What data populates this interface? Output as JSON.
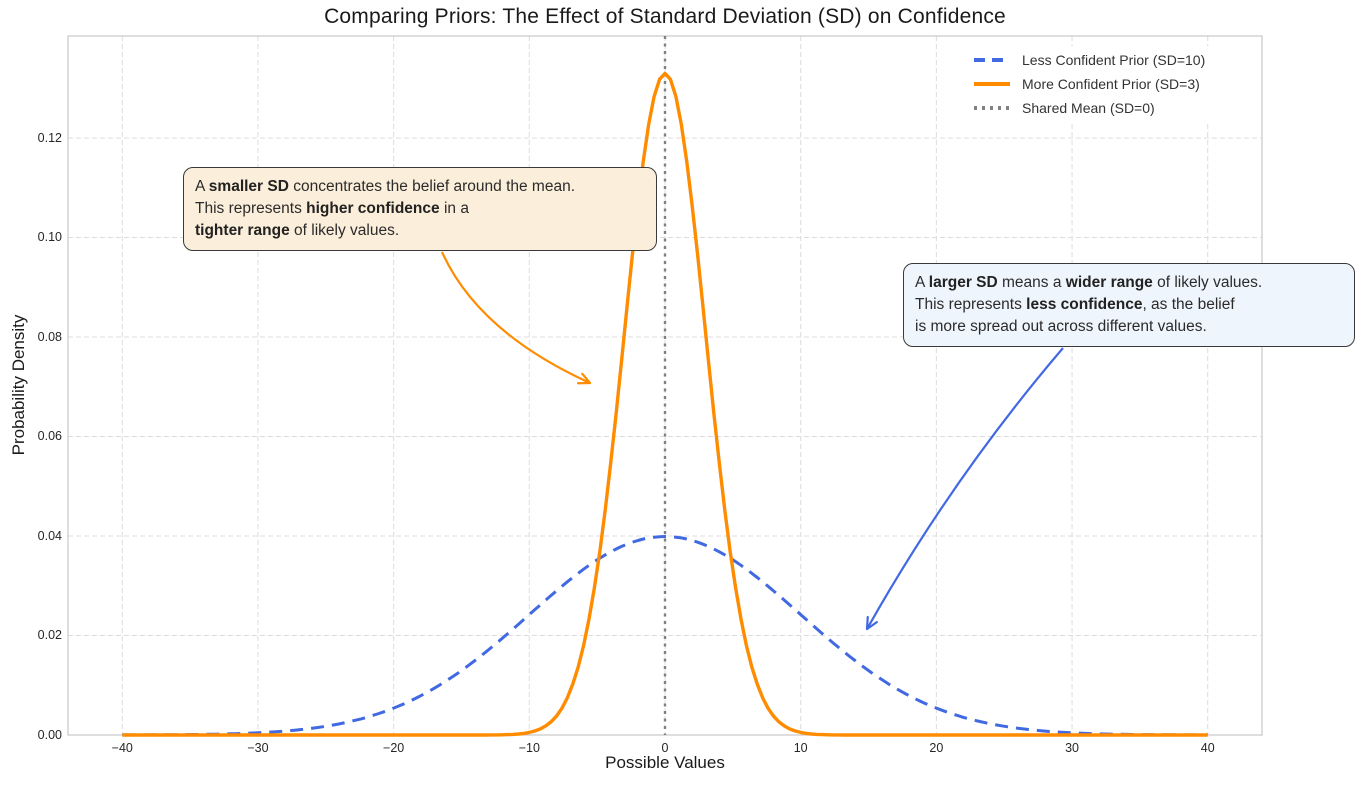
{
  "chart_data": {
    "type": "line",
    "title": "Comparing Priors: The Effect of Standard Deviation (SD) on Confidence",
    "xlabel": "Possible Values",
    "ylabel": "Probability Density",
    "xlim": [
      -44,
      44
    ],
    "ylim": [
      0,
      0.1405
    ],
    "grid": true,
    "xticks": {
      "values": [
        -40,
        -30,
        -20,
        -10,
        0,
        10,
        20,
        30,
        40
      ],
      "labels": [
        "−40",
        "−30",
        "−20",
        "−10",
        "0",
        "10",
        "20",
        "30",
        "40"
      ]
    },
    "yticks": {
      "values": [
        0.0,
        0.02,
        0.04,
        0.06,
        0.08,
        0.1,
        0.12
      ],
      "labels": [
        "0.00",
        "0.02",
        "0.04",
        "0.06",
        "0.08",
        "0.10",
        "0.12"
      ]
    },
    "series": [
      {
        "name": "Less Confident Prior (SD=10)",
        "distribution": "normal_pdf",
        "mean": 0,
        "sd": 10,
        "x_range": [
          -40,
          40
        ],
        "peak_density": 0.0399,
        "color": "#4169E1",
        "line_style": "dashed",
        "line_width": 3
      },
      {
        "name": "More Confident Prior (SD=3)",
        "distribution": "normal_pdf",
        "mean": 0,
        "sd": 3,
        "x_range": [
          -40,
          40
        ],
        "peak_density": 0.133,
        "color": "#FF8C00",
        "line_style": "solid",
        "line_width": 3.4
      }
    ],
    "vline": {
      "label": "Shared Mean (SD=0)",
      "x": 0,
      "color": "#808080",
      "line_style": "dotted"
    },
    "legend": {
      "position": "upper right",
      "items": [
        {
          "label": "Less Confident Prior (SD=10)",
          "color": "#4169E1",
          "style": "dashed"
        },
        {
          "label": "More Confident Prior (SD=3)",
          "color": "#FF8C00",
          "style": "solid"
        },
        {
          "label": "Shared Mean (SD=0)",
          "color": "#808080",
          "style": "dotted"
        }
      ]
    },
    "annotations": [
      {
        "id": "smaller-sd-note",
        "box_color": "#FBEEDA",
        "border_color": "#3a3a3a",
        "arrow_color": "#FF8C00",
        "lines": [
          [
            {
              "t": "A ",
              "b": false
            },
            {
              "t": "smaller SD",
              "b": true
            },
            {
              "t": " concentrates the belief around the mean.",
              "b": false
            }
          ],
          [
            {
              "t": "This represents ",
              "b": false
            },
            {
              "t": "higher confidence",
              "b": true
            },
            {
              "t": " in a",
              "b": false
            }
          ],
          [
            {
              "t": "tighter range",
              "b": true
            },
            {
              "t": " of likely values.",
              "b": false
            }
          ]
        ]
      },
      {
        "id": "larger-sd-note",
        "box_color": "#EFF5FC",
        "border_color": "#3a3a3a",
        "arrow_color": "#4169E1",
        "lines": [
          [
            {
              "t": "A ",
              "b": false
            },
            {
              "t": "larger SD",
              "b": true
            },
            {
              "t": " means a ",
              "b": false
            },
            {
              "t": "wider range",
              "b": true
            },
            {
              "t": " of likely values.",
              "b": false
            }
          ],
          [
            {
              "t": "This represents ",
              "b": false
            },
            {
              "t": "less confidence",
              "b": true
            },
            {
              "t": ", as the belief",
              "b": false
            }
          ],
          [
            {
              "t": "is more spread out across different values.",
              "b": false
            }
          ]
        ]
      }
    ]
  }
}
